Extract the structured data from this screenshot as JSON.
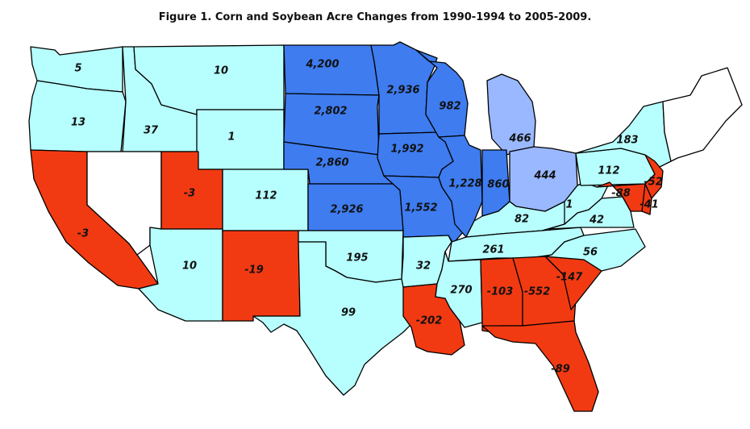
{
  "title": "Figure 1. Corn and Soybean Acre Changes from 1990-1994 to 2005-2009.",
  "colors": {
    "increase_small": "#b7ffff",
    "increase_mid": "#9ab8ff",
    "increase_large": "#3e7cf0",
    "decrease": "#f23a12",
    "no_data": "#ffffff"
  },
  "states": [
    {
      "state": "WA",
      "value": "5",
      "category": "increase_small"
    },
    {
      "state": "OR",
      "value": "13",
      "category": "increase_small"
    },
    {
      "state": "ID",
      "value": "37",
      "category": "increase_small"
    },
    {
      "state": "MT",
      "value": "10",
      "category": "increase_small"
    },
    {
      "state": "WY",
      "value": "1",
      "category": "increase_small"
    },
    {
      "state": "CA",
      "value": "-3",
      "category": "decrease"
    },
    {
      "state": "NV",
      "value": "",
      "category": "no_data"
    },
    {
      "state": "UT",
      "value": "-3",
      "category": "decrease"
    },
    {
      "state": "CO",
      "value": "112",
      "category": "increase_small"
    },
    {
      "state": "AZ",
      "value": "10",
      "category": "increase_small"
    },
    {
      "state": "NM",
      "value": "-19",
      "category": "decrease"
    },
    {
      "state": "ND",
      "value": "4,200",
      "category": "increase_large"
    },
    {
      "state": "SD",
      "value": "2,802",
      "category": "increase_large"
    },
    {
      "state": "NE",
      "value": "2,860",
      "category": "increase_large"
    },
    {
      "state": "KS",
      "value": "2,926",
      "category": "increase_large"
    },
    {
      "state": "OK",
      "value": "195",
      "category": "increase_small"
    },
    {
      "state": "TX",
      "value": "99",
      "category": "increase_small"
    },
    {
      "state": "MN",
      "value": "2,936",
      "category": "increase_large"
    },
    {
      "state": "IA",
      "value": "1,992",
      "category": "increase_large"
    },
    {
      "state": "MO",
      "value": "1,552",
      "category": "increase_large"
    },
    {
      "state": "AR",
      "value": "32",
      "category": "increase_small"
    },
    {
      "state": "LA",
      "value": "-202",
      "category": "decrease"
    },
    {
      "state": "WI",
      "value": "982",
      "category": "increase_large"
    },
    {
      "state": "IL",
      "value": "1,228",
      "category": "increase_large"
    },
    {
      "state": "MI",
      "value": "466",
      "category": "increase_mid"
    },
    {
      "state": "IN",
      "value": "860",
      "category": "increase_large"
    },
    {
      "state": "OH",
      "value": "444",
      "category": "increase_mid"
    },
    {
      "state": "KY",
      "value": "82",
      "category": "increase_small"
    },
    {
      "state": "TN",
      "value": "261",
      "category": "increase_small"
    },
    {
      "state": "MS",
      "value": "270",
      "category": "increase_small"
    },
    {
      "state": "AL",
      "value": "-103",
      "category": "decrease"
    },
    {
      "state": "GA",
      "value": "-552",
      "category": "decrease"
    },
    {
      "state": "FL",
      "value": "-89",
      "category": "decrease"
    },
    {
      "state": "SC",
      "value": "-147",
      "category": "decrease"
    },
    {
      "state": "NC",
      "value": "56",
      "category": "increase_small"
    },
    {
      "state": "VA",
      "value": "42",
      "category": "increase_small"
    },
    {
      "state": "WV",
      "value": "1",
      "category": "increase_small"
    },
    {
      "state": "PA",
      "value": "112",
      "category": "increase_small"
    },
    {
      "state": "NY",
      "value": "183",
      "category": "increase_small"
    },
    {
      "state": "NJ",
      "value": "-52",
      "category": "decrease"
    },
    {
      "state": "MD",
      "value": "-88",
      "category": "decrease"
    },
    {
      "state": "DE",
      "value": "-41",
      "category": "decrease"
    },
    {
      "state": "NE-region",
      "value": "",
      "category": "no_data"
    }
  ]
}
